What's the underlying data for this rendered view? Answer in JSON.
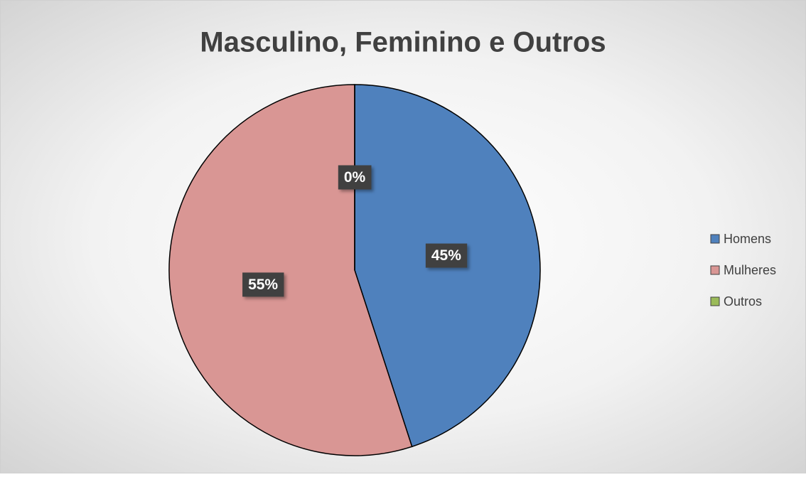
{
  "chart_data": {
    "type": "pie",
    "title": "Masculino, Feminino e Outros",
    "categories": [
      "Homens",
      "Mulheres",
      "Outros"
    ],
    "values": [
      45,
      55,
      0
    ],
    "value_labels": [
      "45%",
      "55%",
      "0%"
    ],
    "colors": [
      "#4f81bd",
      "#d99694",
      "#9bbb59"
    ],
    "legend": "right"
  }
}
